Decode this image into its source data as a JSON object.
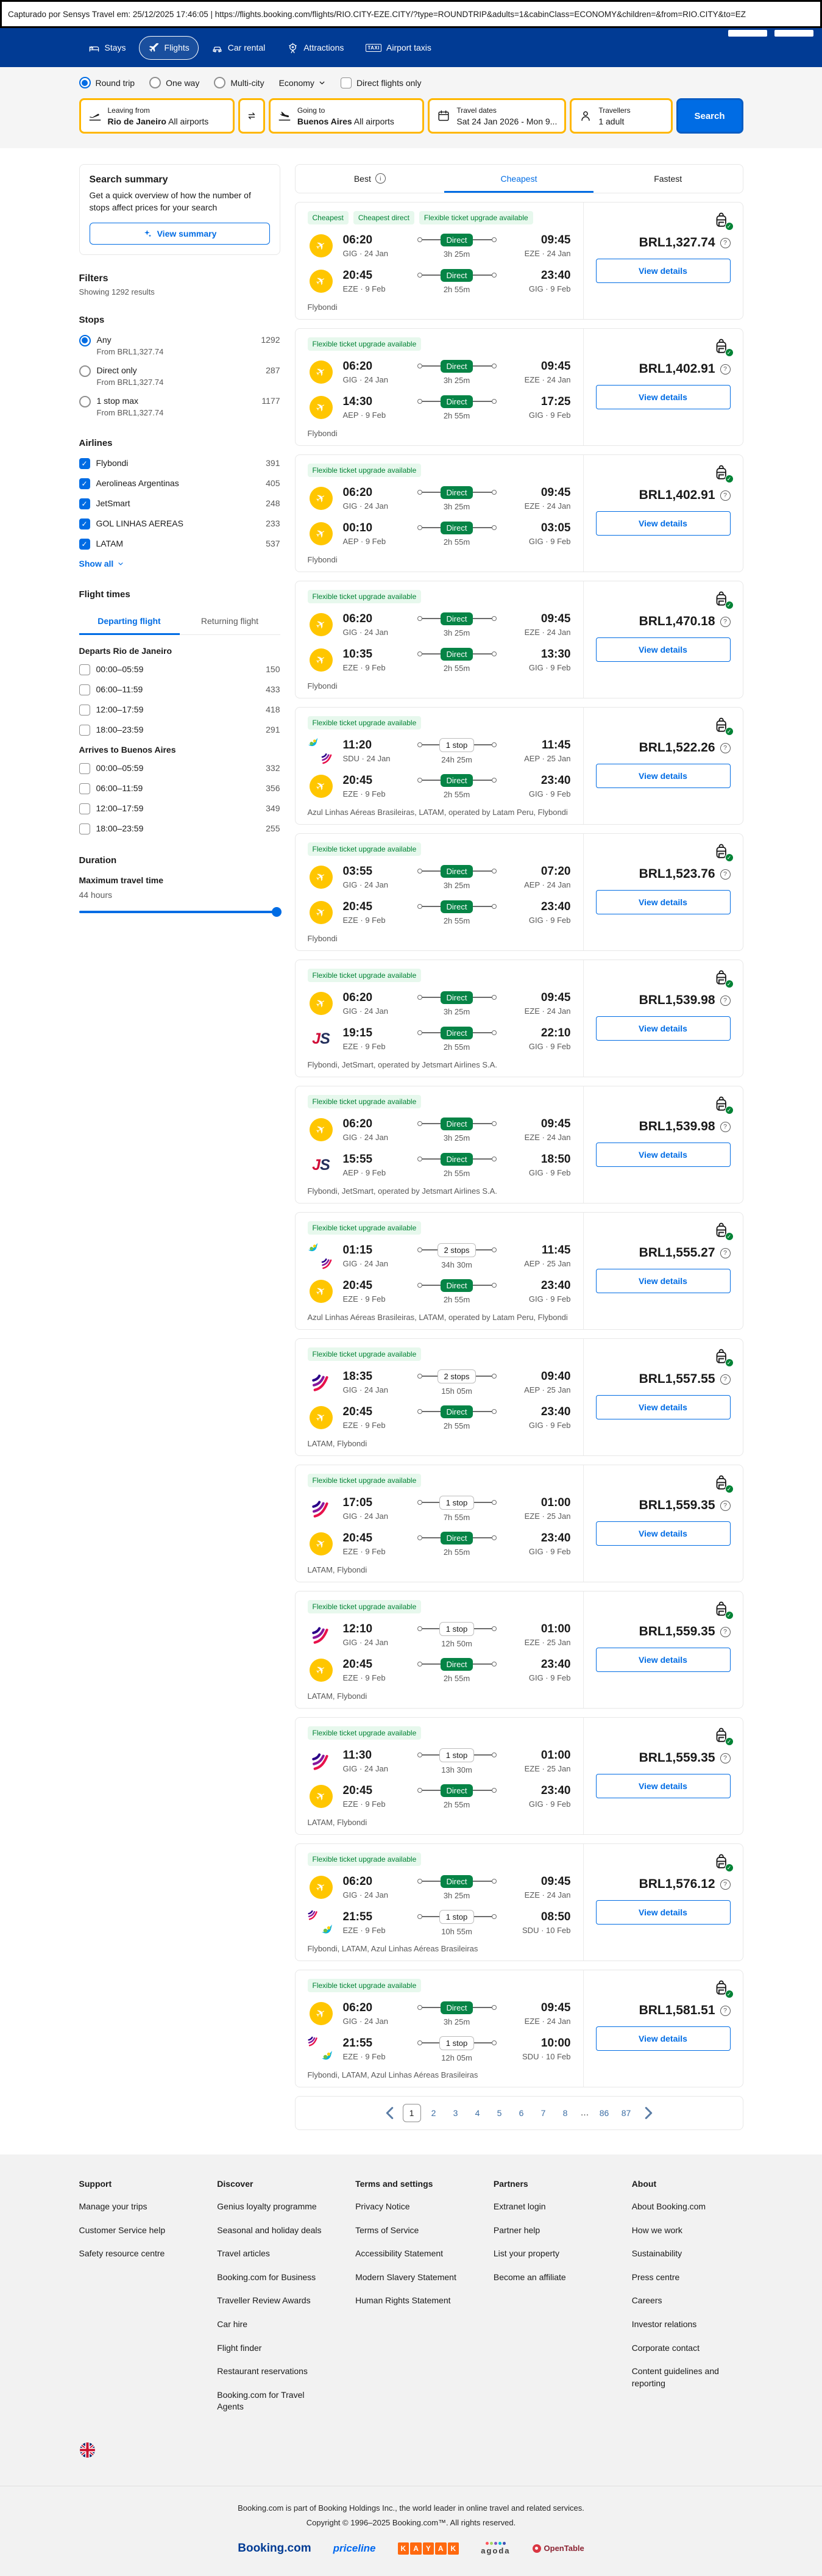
{
  "colors": {
    "header_blue": "#013b94",
    "action_blue": "#006ce4",
    "search_yellow": "#ffb700",
    "direct_green": "#068446",
    "badge_green": "#008234",
    "flybondi_yellow": "#ffc600"
  },
  "capture_bar": {
    "text": "Capturado por Sensys Travel em: 25/12/2025 17:46:05  |  https://flights.booking.com/flights/RIO.CITY-EZE.CITY/?type=ROUNDTRIP&adults=1&cabinClass=ECONOMY&children=&from=RIO.CITY&to=EZ"
  },
  "header": {
    "nav": [
      {
        "label": "Stays",
        "icon": "bed",
        "active": false
      },
      {
        "label": "Flights",
        "icon": "plane",
        "active": true
      },
      {
        "label": "Car rental",
        "icon": "car",
        "active": false
      },
      {
        "label": "Attractions",
        "icon": "attractions",
        "active": false
      },
      {
        "label": "Airport taxis",
        "icon": "taxi",
        "active": false
      }
    ]
  },
  "search_form": {
    "trip_types": [
      {
        "label": "Round trip",
        "selected": true
      },
      {
        "label": "One way",
        "selected": false
      },
      {
        "label": "Multi-city",
        "selected": false
      }
    ],
    "cabin_class": "Economy",
    "direct_only_label": "Direct flights only",
    "fields": {
      "leaving_from": {
        "label": "Leaving from",
        "value_bold": "Rio de Janeiro",
        "value_rest": " All airports"
      },
      "going_to": {
        "label": "Going to",
        "value_bold": "Buenos Aires",
        "value_rest": " All airports"
      },
      "travel_dates": {
        "label": "Travel dates",
        "value": "Sat 24 Jan 2026 - Mon 9..."
      },
      "travellers": {
        "label": "Travellers",
        "value": "1 adult"
      }
    },
    "search_label": "Search"
  },
  "sidebar": {
    "summary_card": {
      "title": "Search summary",
      "description": "Get a quick overview of how the number of stops affect prices for your search",
      "button": "View summary"
    },
    "filters_title": "Filters",
    "results_count": "Showing 1292 results",
    "stops": {
      "title": "Stops",
      "options": [
        {
          "label": "Any",
          "count": "1292",
          "sub": "From BRL1,327.74",
          "selected": true
        },
        {
          "label": "Direct only",
          "count": "287",
          "sub": "From BRL1,327.74",
          "selected": false
        },
        {
          "label": "1 stop max",
          "count": "1177",
          "sub": "From BRL1,327.74",
          "selected": false
        }
      ]
    },
    "airlines": {
      "title": "Airlines",
      "show_all": "Show all",
      "options": [
        {
          "label": "Flybondi",
          "count": "391",
          "checked": true
        },
        {
          "label": "Aerolineas Argentinas",
          "count": "405",
          "checked": true
        },
        {
          "label": "JetSmart",
          "count": "248",
          "checked": true
        },
        {
          "label": "GOL LINHAS AEREAS",
          "count": "233",
          "checked": true
        },
        {
          "label": "LATAM",
          "count": "537",
          "checked": true
        }
      ]
    },
    "flight_times": {
      "title": "Flight times",
      "tabs": [
        {
          "label": "Departing flight",
          "active": true
        },
        {
          "label": "Returning flight",
          "active": false
        }
      ],
      "sections": [
        {
          "title": "Departs Rio de Janeiro",
          "options": [
            {
              "label": "00:00–05:59",
              "count": "150"
            },
            {
              "label": "06:00–11:59",
              "count": "433"
            },
            {
              "label": "12:00–17:59",
              "count": "418"
            },
            {
              "label": "18:00–23:59",
              "count": "291"
            }
          ]
        },
        {
          "title": "Arrives to Buenos Aires",
          "options": [
            {
              "label": "00:00–05:59",
              "count": "332"
            },
            {
              "label": "06:00–11:59",
              "count": "356"
            },
            {
              "label": "12:00–17:59",
              "count": "349"
            },
            {
              "label": "18:00–23:59",
              "count": "255"
            }
          ]
        }
      ]
    },
    "duration": {
      "title": "Duration",
      "label": "Maximum travel time",
      "value": "44 hours"
    }
  },
  "results": {
    "tabs": [
      {
        "label": "Best",
        "info": true,
        "active": false
      },
      {
        "label": "Cheapest",
        "info": false,
        "active": true
      },
      {
        "label": "Fastest",
        "info": false,
        "active": false
      }
    ],
    "view_details_label": "View details",
    "cards": [
      {
        "badges": [
          "Cheapest",
          "Cheapest direct",
          "Flexible ticket upgrade available"
        ],
        "legs": [
          {
            "logos": [
              "flybondi"
            ],
            "dep_time": "06:20",
            "dep_info": "GIG · 24 Jan",
            "stop": "Direct",
            "duration": "3h 25m",
            "arr_time": "09:45",
            "arr_info": "EZE · 24 Jan"
          },
          {
            "logos": [
              "flybondi"
            ],
            "dep_time": "20:45",
            "dep_info": "EZE · 9 Feb",
            "stop": "Direct",
            "duration": "2h 55m",
            "arr_time": "23:40",
            "arr_info": "GIG · 9 Feb"
          }
        ],
        "airlines": "Flybondi",
        "price": "BRL1,327.74"
      },
      {
        "badges": [
          "Flexible ticket upgrade available"
        ],
        "legs": [
          {
            "logos": [
              "flybondi"
            ],
            "dep_time": "06:20",
            "dep_info": "GIG · 24 Jan",
            "stop": "Direct",
            "duration": "3h 25m",
            "arr_time": "09:45",
            "arr_info": "EZE · 24 Jan"
          },
          {
            "logos": [
              "flybondi"
            ],
            "dep_time": "14:30",
            "dep_info": "AEP · 9 Feb",
            "stop": "Direct",
            "duration": "2h 55m",
            "arr_time": "17:25",
            "arr_info": "GIG · 9 Feb"
          }
        ],
        "airlines": "Flybondi",
        "price": "BRL1,402.91"
      },
      {
        "badges": [
          "Flexible ticket upgrade available"
        ],
        "legs": [
          {
            "logos": [
              "flybondi"
            ],
            "dep_time": "06:20",
            "dep_info": "GIG · 24 Jan",
            "stop": "Direct",
            "duration": "3h 25m",
            "arr_time": "09:45",
            "arr_info": "EZE · 24 Jan"
          },
          {
            "logos": [
              "flybondi"
            ],
            "dep_time": "00:10",
            "dep_info": "AEP · 9 Feb",
            "stop": "Direct",
            "duration": "2h 55m",
            "arr_time": "03:05",
            "arr_info": "GIG · 9 Feb"
          }
        ],
        "airlines": "Flybondi",
        "price": "BRL1,402.91"
      },
      {
        "badges": [
          "Flexible ticket upgrade available"
        ],
        "legs": [
          {
            "logos": [
              "flybondi"
            ],
            "dep_time": "06:20",
            "dep_info": "GIG · 24 Jan",
            "stop": "Direct",
            "duration": "3h 25m",
            "arr_time": "09:45",
            "arr_info": "EZE · 24 Jan"
          },
          {
            "logos": [
              "flybondi"
            ],
            "dep_time": "10:35",
            "dep_info": "EZE · 9 Feb",
            "stop": "Direct",
            "duration": "2h 55m",
            "arr_time": "13:30",
            "arr_info": "GIG · 9 Feb"
          }
        ],
        "airlines": "Flybondi",
        "price": "BRL1,470.18"
      },
      {
        "badges": [
          "Flexible ticket upgrade available"
        ],
        "legs": [
          {
            "logos": [
              "azul",
              "latam"
            ],
            "dep_time": "11:20",
            "dep_info": "SDU · 24 Jan",
            "stop": "1 stop",
            "duration": "24h 25m",
            "arr_time": "11:45",
            "arr_info": "AEP · 25 Jan"
          },
          {
            "logos": [
              "flybondi"
            ],
            "dep_time": "20:45",
            "dep_info": "EZE · 9 Feb",
            "stop": "Direct",
            "duration": "2h 55m",
            "arr_time": "23:40",
            "arr_info": "GIG · 9 Feb"
          }
        ],
        "airlines": "Azul Linhas Aéreas Brasileiras, LATAM, operated by Latam Peru, Flybondi",
        "price": "BRL1,522.26"
      },
      {
        "badges": [
          "Flexible ticket upgrade available"
        ],
        "legs": [
          {
            "logos": [
              "flybondi"
            ],
            "dep_time": "03:55",
            "dep_info": "GIG · 24 Jan",
            "stop": "Direct",
            "duration": "3h 25m",
            "arr_time": "07:20",
            "arr_info": "AEP · 24 Jan"
          },
          {
            "logos": [
              "flybondi"
            ],
            "dep_time": "20:45",
            "dep_info": "EZE · 9 Feb",
            "stop": "Direct",
            "duration": "2h 55m",
            "arr_time": "23:40",
            "arr_info": "GIG · 9 Feb"
          }
        ],
        "airlines": "Flybondi",
        "price": "BRL1,523.76"
      },
      {
        "badges": [
          "Flexible ticket upgrade available"
        ],
        "legs": [
          {
            "logos": [
              "flybondi"
            ],
            "dep_time": "06:20",
            "dep_info": "GIG · 24 Jan",
            "stop": "Direct",
            "duration": "3h 25m",
            "arr_time": "09:45",
            "arr_info": "EZE · 24 Jan"
          },
          {
            "logos": [
              "jetsmart"
            ],
            "dep_time": "19:15",
            "dep_info": "EZE · 9 Feb",
            "stop": "Direct",
            "duration": "2h 55m",
            "arr_time": "22:10",
            "arr_info": "GIG · 9 Feb"
          }
        ],
        "airlines": "Flybondi, JetSmart, operated by Jetsmart Airlines S.A.",
        "price": "BRL1,539.98"
      },
      {
        "badges": [
          "Flexible ticket upgrade available"
        ],
        "legs": [
          {
            "logos": [
              "flybondi"
            ],
            "dep_time": "06:20",
            "dep_info": "GIG · 24 Jan",
            "stop": "Direct",
            "duration": "3h 25m",
            "arr_time": "09:45",
            "arr_info": "EZE · 24 Jan"
          },
          {
            "logos": [
              "jetsmart"
            ],
            "dep_time": "15:55",
            "dep_info": "AEP · 9 Feb",
            "stop": "Direct",
            "duration": "2h 55m",
            "arr_time": "18:50",
            "arr_info": "GIG · 9 Feb"
          }
        ],
        "airlines": "Flybondi, JetSmart, operated by Jetsmart Airlines S.A.",
        "price": "BRL1,539.98"
      },
      {
        "badges": [
          "Flexible ticket upgrade available"
        ],
        "legs": [
          {
            "logos": [
              "azul",
              "latam"
            ],
            "dep_time": "01:15",
            "dep_info": "GIG · 24 Jan",
            "stop": "2 stops",
            "duration": "34h 30m",
            "arr_time": "11:45",
            "arr_info": "AEP · 25 Jan"
          },
          {
            "logos": [
              "flybondi"
            ],
            "dep_time": "20:45",
            "dep_info": "EZE · 9 Feb",
            "stop": "Direct",
            "duration": "2h 55m",
            "arr_time": "23:40",
            "arr_info": "GIG · 9 Feb"
          }
        ],
        "airlines": "Azul Linhas Aéreas Brasileiras, LATAM, operated by Latam Peru, Flybondi",
        "price": "BRL1,555.27"
      },
      {
        "badges": [
          "Flexible ticket upgrade available"
        ],
        "legs": [
          {
            "logos": [
              "latam"
            ],
            "dep_time": "18:35",
            "dep_info": "GIG · 24 Jan",
            "stop": "2 stops",
            "duration": "15h 05m",
            "arr_time": "09:40",
            "arr_info": "AEP · 25 Jan"
          },
          {
            "logos": [
              "flybondi"
            ],
            "dep_time": "20:45",
            "dep_info": "EZE · 9 Feb",
            "stop": "Direct",
            "duration": "2h 55m",
            "arr_time": "23:40",
            "arr_info": "GIG · 9 Feb"
          }
        ],
        "airlines": "LATAM, Flybondi",
        "price": "BRL1,557.55"
      },
      {
        "badges": [
          "Flexible ticket upgrade available"
        ],
        "legs": [
          {
            "logos": [
              "latam"
            ],
            "dep_time": "17:05",
            "dep_info": "GIG · 24 Jan",
            "stop": "1 stop",
            "duration": "7h 55m",
            "arr_time": "01:00",
            "arr_info": "EZE · 25 Jan"
          },
          {
            "logos": [
              "flybondi"
            ],
            "dep_time": "20:45",
            "dep_info": "EZE · 9 Feb",
            "stop": "Direct",
            "duration": "2h 55m",
            "arr_time": "23:40",
            "arr_info": "GIG · 9 Feb"
          }
        ],
        "airlines": "LATAM, Flybondi",
        "price": "BRL1,559.35"
      },
      {
        "badges": [
          "Flexible ticket upgrade available"
        ],
        "legs": [
          {
            "logos": [
              "latam"
            ],
            "dep_time": "12:10",
            "dep_info": "GIG · 24 Jan",
            "stop": "1 stop",
            "duration": "12h 50m",
            "arr_time": "01:00",
            "arr_info": "EZE · 25 Jan"
          },
          {
            "logos": [
              "flybondi"
            ],
            "dep_time": "20:45",
            "dep_info": "EZE · 9 Feb",
            "stop": "Direct",
            "duration": "2h 55m",
            "arr_time": "23:40",
            "arr_info": "GIG · 9 Feb"
          }
        ],
        "airlines": "LATAM, Flybondi",
        "price": "BRL1,559.35"
      },
      {
        "badges": [
          "Flexible ticket upgrade available"
        ],
        "legs": [
          {
            "logos": [
              "latam"
            ],
            "dep_time": "11:30",
            "dep_info": "GIG · 24 Jan",
            "stop": "1 stop",
            "duration": "13h 30m",
            "arr_time": "01:00",
            "arr_info": "EZE · 25 Jan"
          },
          {
            "logos": [
              "flybondi"
            ],
            "dep_time": "20:45",
            "dep_info": "EZE · 9 Feb",
            "stop": "Direct",
            "duration": "2h 55m",
            "arr_time": "23:40",
            "arr_info": "GIG · 9 Feb"
          }
        ],
        "airlines": "LATAM, Flybondi",
        "price": "BRL1,559.35"
      },
      {
        "badges": [
          "Flexible ticket upgrade available"
        ],
        "legs": [
          {
            "logos": [
              "flybondi"
            ],
            "dep_time": "06:20",
            "dep_info": "GIG · 24 Jan",
            "stop": "Direct",
            "duration": "3h 25m",
            "arr_time": "09:45",
            "arr_info": "EZE · 24 Jan"
          },
          {
            "logos": [
              "latam",
              "azul"
            ],
            "dep_time": "21:55",
            "dep_info": "EZE · 9 Feb",
            "stop": "1 stop",
            "duration": "10h 55m",
            "arr_time": "08:50",
            "arr_info": "SDU · 10 Feb"
          }
        ],
        "airlines": "Flybondi, LATAM, Azul Linhas Aéreas Brasileiras",
        "price": "BRL1,576.12"
      },
      {
        "badges": [
          "Flexible ticket upgrade available"
        ],
        "legs": [
          {
            "logos": [
              "flybondi"
            ],
            "dep_time": "06:20",
            "dep_info": "GIG · 24 Jan",
            "stop": "Direct",
            "duration": "3h 25m",
            "arr_time": "09:45",
            "arr_info": "EZE · 24 Jan"
          },
          {
            "logos": [
              "latam",
              "azul"
            ],
            "dep_time": "21:55",
            "dep_info": "EZE · 9 Feb",
            "stop": "1 stop",
            "duration": "12h 05m",
            "arr_time": "10:00",
            "arr_info": "SDU · 10 Feb"
          }
        ],
        "airlines": "Flybondi, LATAM, Azul Linhas Aéreas Brasileiras",
        "price": "BRL1,581.51"
      }
    ]
  },
  "pagination": {
    "pages": [
      "1",
      "2",
      "3",
      "4",
      "5",
      "6",
      "7",
      "8",
      "...",
      "86",
      "87"
    ],
    "current": "1"
  },
  "footer": {
    "columns": [
      {
        "title": "Support",
        "links": [
          "Manage your trips",
          "Customer Service help",
          "Safety resource centre"
        ]
      },
      {
        "title": "Discover",
        "links": [
          "Genius loyalty programme",
          "Seasonal and holiday deals",
          "Travel articles",
          "Booking.com for Business",
          "Traveller Review Awards",
          "Car hire",
          "Flight finder",
          "Restaurant reservations",
          "Booking.com for Travel Agents"
        ]
      },
      {
        "title": "Terms and settings",
        "links": [
          "Privacy Notice",
          "Terms of Service",
          "Accessibility Statement",
          "Modern Slavery Statement",
          "Human Rights Statement"
        ]
      },
      {
        "title": "Partners",
        "links": [
          "Extranet login",
          "Partner help",
          "List your property",
          "Become an affiliate"
        ]
      },
      {
        "title": "About",
        "links": [
          "About Booking.com",
          "How we work",
          "Sustainability",
          "Press centre",
          "Careers",
          "Investor relations",
          "Corporate contact",
          "Content guidelines and reporting"
        ]
      }
    ],
    "legal_line1": "Booking.com is part of Booking Holdings Inc., the world leader in online travel and related services.",
    "legal_line2": "Copyright © 1996–2025 Booking.com™. All rights reserved.",
    "brands": [
      "Booking.com",
      "priceline",
      "KAYAK",
      "agoda",
      "OpenTable"
    ]
  }
}
